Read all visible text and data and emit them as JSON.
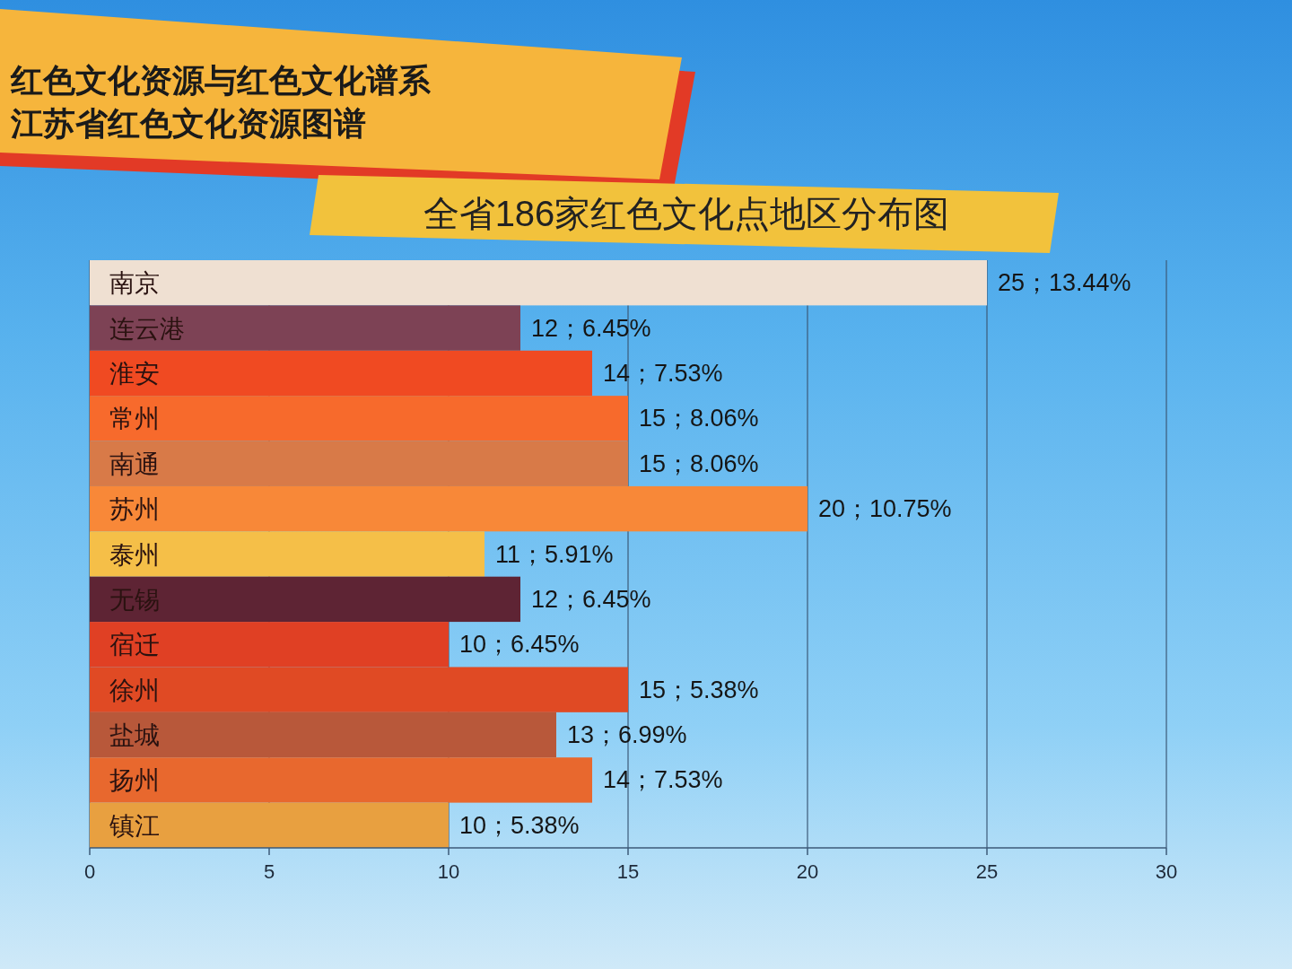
{
  "chart_data": {
    "type": "bar",
    "orientation": "horizontal",
    "title": "全省186家红色文化点地区分布图",
    "annotations": [
      "红色文化资源与红色文化谱系",
      "江苏省红色文化资源图谱"
    ],
    "categories": [
      "南京",
      "连云港",
      "淮安",
      "常州",
      "南通",
      "苏州",
      "泰州",
      "无锡",
      "宿迁",
      "徐州",
      "盐城",
      "扬州",
      "镇江"
    ],
    "values": [
      25,
      12,
      14,
      15,
      15,
      20,
      11,
      12,
      10,
      15,
      13,
      14,
      10
    ],
    "colors": [
      "#efe0d2",
      "#7d4255",
      "#f04a22",
      "#f76a2c",
      "#d87a48",
      "#f88838",
      "#f5bf48",
      "#5e2434",
      "#e04024",
      "#e04a24",
      "#b8583a",
      "#e8682e",
      "#e8a040"
    ],
    "value_labels": [
      "25；13.44%",
      "12；6.45%",
      "14；7.53%",
      "15；8.06%",
      "15；8.06%",
      "20；10.75%",
      "11；5.91%",
      "12；6.45%",
      "10；6.45%",
      "15；5.38%",
      "13；6.99%",
      "14；7.53%",
      "10；5.38%"
    ],
    "xlim": [
      0,
      30
    ],
    "xticks": [
      0,
      5,
      10,
      15,
      20,
      25,
      30
    ],
    "grid": "x"
  }
}
